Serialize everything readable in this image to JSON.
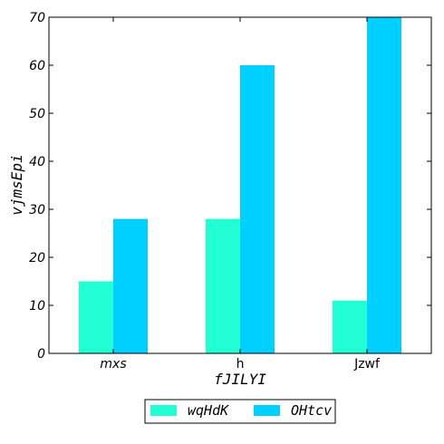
{
  "chart_data": {
    "type": "bar",
    "categories": [
      "mxs",
      "h",
      "Jzwf"
    ],
    "series": [
      {
        "name": "wqHdK",
        "values": [
          15,
          28,
          11
        ],
        "color": "#22ffd4"
      },
      {
        "name": "OHtcv",
        "values": [
          28,
          60,
          70
        ],
        "color": "#00d0ff"
      }
    ],
    "title": "",
    "xlabel": "fJILYI",
    "ylabel": "vjmsEpi",
    "ylim": [
      0,
      70
    ],
    "yticks": [
      0,
      10,
      20,
      30,
      40,
      50,
      60,
      70
    ],
    "grid": false,
    "legend_position": "bottom-center"
  }
}
